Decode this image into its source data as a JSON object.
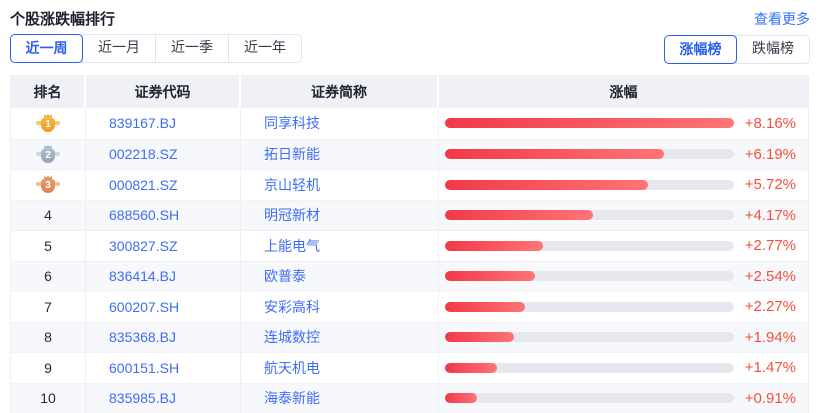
{
  "header": {
    "title": "个股涨跌幅排行",
    "more_link": "查看更多"
  },
  "period_tabs": [
    {
      "label": "近一周",
      "active": true
    },
    {
      "label": "近一月",
      "active": false
    },
    {
      "label": "近一季",
      "active": false
    },
    {
      "label": "近一年",
      "active": false
    }
  ],
  "board_tabs": [
    {
      "label": "涨幅榜",
      "active": true
    },
    {
      "label": "跌幅榜",
      "active": false
    }
  ],
  "table": {
    "columns": [
      "排名",
      "证券代码",
      "证券简称",
      "涨幅"
    ],
    "max_change_pct": 8.16,
    "rows": [
      {
        "rank": "1",
        "medal": "gold-medal-icon",
        "code": "839167.BJ",
        "name": "同享科技",
        "change": "+8.16%",
        "value": 8.16
      },
      {
        "rank": "2",
        "medal": "silver-medal-icon",
        "code": "002218.SZ",
        "name": "拓日新能",
        "change": "+6.19%",
        "value": 6.19
      },
      {
        "rank": "3",
        "medal": "bronze-medal-icon",
        "code": "000821.SZ",
        "name": "京山轻机",
        "change": "+5.72%",
        "value": 5.72
      },
      {
        "rank": "4",
        "medal": null,
        "code": "688560.SH",
        "name": "明冠新材",
        "change": "+4.17%",
        "value": 4.17
      },
      {
        "rank": "5",
        "medal": null,
        "code": "300827.SZ",
        "name": "上能电气",
        "change": "+2.77%",
        "value": 2.77
      },
      {
        "rank": "6",
        "medal": null,
        "code": "836414.BJ",
        "name": "欧普泰",
        "change": "+2.54%",
        "value": 2.54
      },
      {
        "rank": "7",
        "medal": null,
        "code": "600207.SH",
        "name": "安彩高科",
        "change": "+2.27%",
        "value": 2.27
      },
      {
        "rank": "8",
        "medal": null,
        "code": "835368.BJ",
        "name": "连城数控",
        "change": "+1.94%",
        "value": 1.94
      },
      {
        "rank": "9",
        "medal": null,
        "code": "600151.SH",
        "name": "航天机电",
        "change": "+1.47%",
        "value": 1.47
      },
      {
        "rank": "10",
        "medal": null,
        "code": "835985.BJ",
        "name": "海泰新能",
        "change": "+0.91%",
        "value": 0.91
      }
    ]
  },
  "colors": {
    "accent_blue": "#2c62e9",
    "link_blue": "#3673f5",
    "stock_link_blue": "#3f6df4",
    "up_red_text": "#f4503c",
    "bar_gradient_start": "#f2384a",
    "bar_gradient_end": "#ff7476",
    "bar_track": "#e7e7f0",
    "header_bg": "#eff1f6",
    "zebra_bg": "#f7f8fb",
    "medal_gold": "#f0a32f",
    "medal_silver": "#9fb2c4",
    "medal_bronze": "#e0905f"
  }
}
